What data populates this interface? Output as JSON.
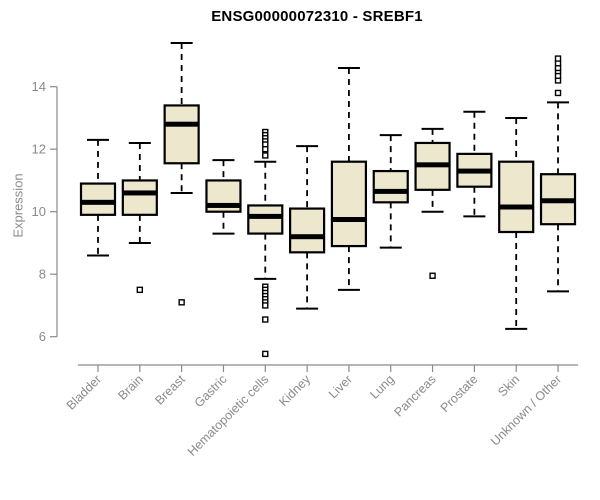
{
  "figure": {
    "title": "ENSG00000072310 - SREBF1",
    "ylabel": "Expression"
  },
  "chart_data": {
    "type": "boxplot",
    "title": "ENSG00000072310 - SREBF1",
    "xlabel": "",
    "ylabel": "Expression",
    "yticks": [
      6,
      8,
      10,
      12,
      14
    ],
    "ylim": [
      5.2,
      15.6
    ],
    "grid": false,
    "legend": "none",
    "categories": [
      "Bladder",
      "Brain",
      "Breast",
      "Gastric",
      "Hematopoietic cells",
      "Kidney",
      "Liver",
      "Lung",
      "Pancreas",
      "Prostate",
      "Skin",
      "Unknown / Other"
    ],
    "series": [
      {
        "name": "Bladder",
        "low": 8.6,
        "q1": 9.9,
        "median": 10.3,
        "q3": 10.9,
        "high": 12.3,
        "outliers": []
      },
      {
        "name": "Brain",
        "low": 9.0,
        "q1": 9.9,
        "median": 10.6,
        "q3": 11.0,
        "high": 12.2,
        "outliers": [
          7.5
        ]
      },
      {
        "name": "Breast",
        "low": 10.6,
        "q1": 11.55,
        "median": 12.8,
        "q3": 13.4,
        "high": 15.4,
        "outliers": [
          7.1
        ]
      },
      {
        "name": "Gastric",
        "low": 9.3,
        "q1": 10.0,
        "median": 10.2,
        "q3": 11.0,
        "high": 11.65,
        "outliers": []
      },
      {
        "name": "Hematopoietic cells",
        "low": 7.85,
        "q1": 9.3,
        "median": 9.85,
        "q3": 10.2,
        "high": 11.6,
        "outliers": [
          12.55,
          12.45,
          12.35,
          12.25,
          12.15,
          12.0,
          11.8,
          7.6,
          7.5,
          7.4,
          7.3,
          7.2,
          7.1,
          7.0,
          6.55,
          5.45
        ]
      },
      {
        "name": "Kidney",
        "low": 6.9,
        "q1": 8.7,
        "median": 9.2,
        "q3": 10.1,
        "high": 12.1,
        "outliers": []
      },
      {
        "name": "Liver",
        "low": 7.5,
        "q1": 8.9,
        "median": 9.75,
        "q3": 11.6,
        "high": 14.6,
        "outliers": []
      },
      {
        "name": "Lung",
        "low": 8.85,
        "q1": 10.3,
        "median": 10.65,
        "q3": 11.3,
        "high": 12.45,
        "outliers": []
      },
      {
        "name": "Pancreas",
        "low": 10.0,
        "q1": 10.7,
        "median": 11.5,
        "q3": 12.2,
        "high": 12.65,
        "outliers": [
          7.95
        ]
      },
      {
        "name": "Prostate",
        "low": 9.85,
        "q1": 10.8,
        "median": 11.3,
        "q3": 11.85,
        "high": 13.2,
        "outliers": []
      },
      {
        "name": "Skin",
        "low": 6.25,
        "q1": 9.35,
        "median": 10.15,
        "q3": 11.6,
        "high": 13.0,
        "outliers": []
      },
      {
        "name": "Unknown / Other",
        "low": 7.45,
        "q1": 9.6,
        "median": 10.35,
        "q3": 11.2,
        "high": 13.5,
        "outliers": [
          13.8,
          14.2,
          14.35,
          14.5,
          14.6,
          14.75,
          14.9
        ]
      }
    ],
    "colors": {
      "box_fill": "#EDE8CD",
      "box_stroke": "#000000",
      "median": "#000000",
      "whisker": "#000000",
      "axis": "#8A8A8A",
      "tick_label": "#8A8A8A",
      "title": "#000000",
      "background": "#ffffff"
    }
  }
}
